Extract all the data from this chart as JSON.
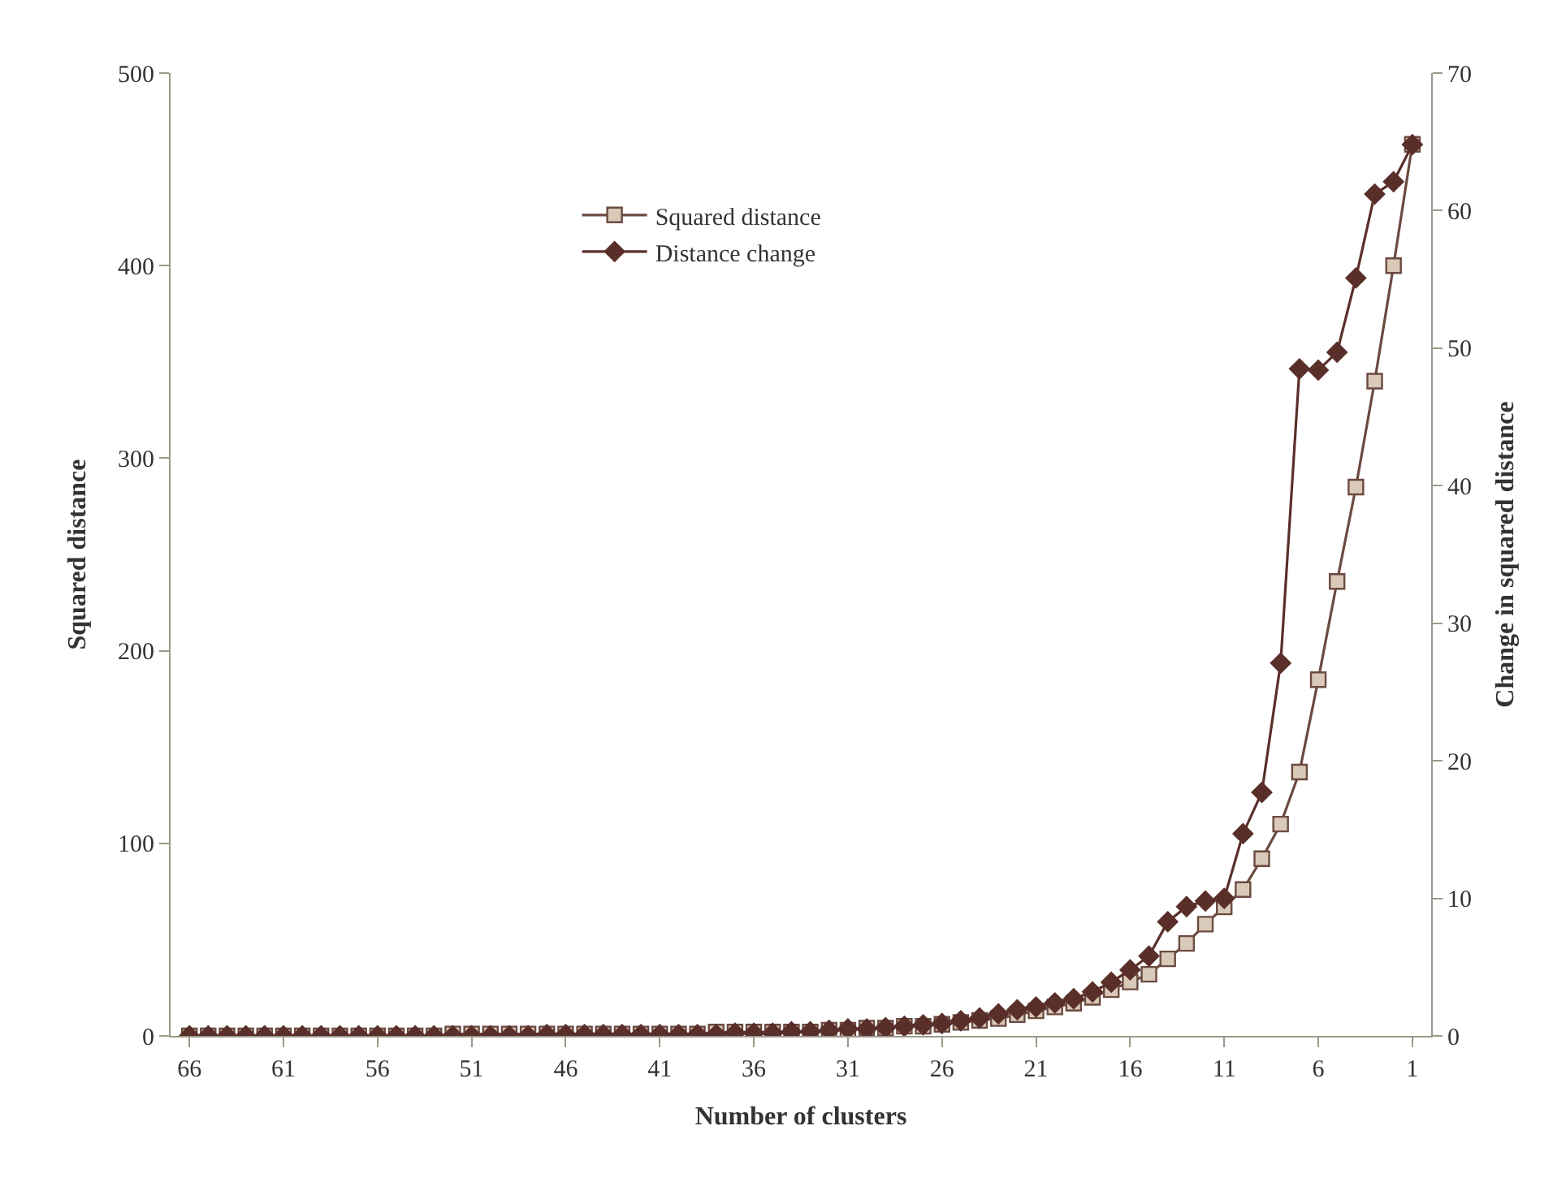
{
  "chart_data": {
    "type": "line",
    "xlabel": "Number of clusters",
    "ylabel": "Squared distance",
    "y2label": "Change in squared distance",
    "x": [
      66,
      65,
      64,
      63,
      62,
      61,
      60,
      59,
      58,
      57,
      56,
      55,
      54,
      53,
      52,
      51,
      50,
      49,
      48,
      47,
      46,
      45,
      44,
      43,
      42,
      41,
      40,
      39,
      38,
      37,
      36,
      35,
      34,
      33,
      32,
      31,
      30,
      29,
      28,
      27,
      26,
      25,
      24,
      23,
      22,
      21,
      20,
      19,
      18,
      17,
      16,
      15,
      14,
      13,
      12,
      11,
      10,
      9,
      8,
      7,
      6,
      5,
      4,
      3,
      2,
      1
    ],
    "series": [
      {
        "name": "Squared distance",
        "color": "#6b4a40",
        "marker": "square",
        "values": [
          0,
          0,
          0,
          0,
          0,
          0,
          0,
          0,
          0,
          0,
          0,
          0,
          0,
          0,
          1,
          1,
          1,
          1,
          1,
          1,
          1,
          1,
          1,
          1,
          1,
          1,
          1,
          1,
          2,
          2,
          2,
          2,
          2,
          2,
          3,
          3,
          4,
          4,
          5,
          5,
          6,
          7,
          8,
          9,
          11,
          13,
          15,
          17,
          20,
          24,
          28,
          32,
          40,
          48,
          58,
          67,
          76,
          92,
          110,
          137,
          185,
          236,
          285,
          340,
          400,
          463
        ]
      },
      {
        "name": "Distance change",
        "color": "#5a2f2a",
        "marker": "diamond",
        "axis": "y2",
        "values": [
          0.0,
          0.0,
          0.0,
          0.0,
          0.0,
          0.0,
          0.0,
          0.0,
          0.0,
          0.0,
          0.0,
          0.0,
          0.0,
          0.0,
          0.0,
          0.0,
          0.0,
          0.0,
          0.0,
          0.1,
          0.1,
          0.1,
          0.1,
          0.1,
          0.1,
          0.1,
          0.1,
          0.1,
          0.1,
          0.2,
          0.2,
          0.2,
          0.3,
          0.3,
          0.4,
          0.5,
          0.5,
          0.6,
          0.7,
          0.8,
          0.9,
          1.1,
          1.3,
          1.6,
          1.9,
          2.1,
          2.4,
          2.7,
          3.2,
          3.9,
          4.8,
          5.8,
          8.3,
          9.4,
          9.8,
          10.0,
          14.7,
          17.7,
          27.1,
          48.5,
          48.4,
          49.7,
          55.1,
          61.2,
          62.1,
          64.8
        ]
      }
    ],
    "xlim": [
      67,
      0
    ],
    "xticks": [
      66,
      61,
      56,
      51,
      46,
      41,
      36,
      31,
      26,
      21,
      16,
      11,
      6,
      1
    ],
    "ylim": [
      0,
      500
    ],
    "yticks": [
      0,
      100,
      200,
      300,
      400,
      500
    ],
    "y2lim": [
      0,
      70
    ],
    "y2ticks": [
      0,
      10,
      20,
      30,
      40,
      50,
      60,
      70
    ],
    "legend": "top",
    "line_style": "solid"
  }
}
